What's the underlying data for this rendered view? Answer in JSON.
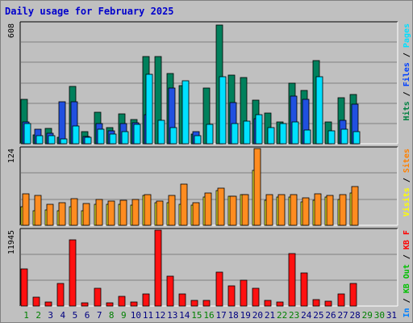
{
  "chart_data": {
    "type": "bar",
    "title": "Daily usage for February 2025",
    "categories": [
      "1",
      "2",
      "3",
      "4",
      "5",
      "6",
      "7",
      "8",
      "9",
      "10",
      "11",
      "12",
      "13",
      "14",
      "15",
      "16",
      "17",
      "18",
      "19",
      "20",
      "21",
      "22",
      "23",
      "24",
      "25",
      "26",
      "27",
      "28",
      "29",
      "30",
      "31"
    ],
    "weekend_days": [
      1,
      2,
      8,
      9,
      15,
      16,
      22,
      23,
      29,
      30
    ],
    "panels": [
      {
        "id": "top",
        "max_label": "608",
        "ylim": [
          0,
          608
        ],
        "legend": [
          {
            "label": "Hits",
            "color": "#008040"
          },
          {
            "sep": " / "
          },
          {
            "label": "Files",
            "color": "#0040ff"
          },
          {
            "sep": " / "
          },
          {
            "label": "Pages",
            "color": "#00e0ff"
          }
        ],
        "series": [
          {
            "name": "Hits",
            "color": "#00805c",
            "values": [
              225,
              45,
              78,
              33,
              288,
              62,
              160,
              80,
              150,
              122,
              440,
              440,
              355,
              292,
              50,
              280,
              600,
              345,
              335,
              220,
              155,
              110,
              308,
              270,
              420,
              112,
              232,
              250,
              null,
              null,
              null
            ]
          },
          {
            "name": "Files",
            "color": "#2050e0",
            "values": [
              112,
              72,
              55,
              212,
              212,
              38,
              100,
              65,
              102,
              105,
              145,
              0,
              280,
              0,
              62,
              0,
              0,
              210,
              0,
              125,
              0,
              0,
              240,
              225,
              0,
              0,
              120,
              198,
              null,
              null,
              null
            ]
          },
          {
            "name": "Pages",
            "color": "#00e0ff",
            "values": [
              100,
              42,
              40,
              25,
              90,
              32,
              75,
              50,
              62,
              97,
              350,
              118,
              80,
              320,
              42,
              97,
              340,
              100,
              115,
              148,
              82,
              100,
              110,
              70,
              338,
              65,
              72,
              60,
              null,
              null,
              null
            ]
          }
        ]
      },
      {
        "id": "middle",
        "max_label": "124",
        "ylim": [
          0,
          124
        ],
        "legend": [
          {
            "label": "Visits",
            "color": "#ffff00"
          },
          {
            "sep": " / "
          },
          {
            "label": "Sites",
            "color": "#ff8000"
          }
        ],
        "series": [
          {
            "name": "Visits",
            "color": "#ffff30",
            "values": [
              30,
              24,
              25,
              24,
              30,
              24,
              34,
              34,
              34,
              33,
              48,
              36,
              37,
              34,
              33,
              46,
              56,
              47,
              50,
              89,
              40,
              46,
              46,
              38,
              40,
              46,
              42,
              52,
              null,
              null,
              null
            ]
          },
          {
            "name": "Sites",
            "color": "#ff8c20",
            "values": [
              51,
              48,
              34,
              36,
              43,
              35,
              42,
              39,
              41,
              42,
              50,
              39,
              48,
              66,
              37,
              52,
              60,
              47,
              49,
              124,
              49,
              49,
              50,
              45,
              51,
              48,
              50,
              63,
              null,
              null,
              null
            ]
          }
        ]
      },
      {
        "id": "bottom",
        "max_label": "11945",
        "ylim": [
          0,
          11945
        ],
        "legend": [
          {
            "label": "KB In",
            "color": "#0080ff"
          },
          {
            "sep": " / "
          },
          {
            "label": "KB Out",
            "color": "#00c000"
          },
          {
            "sep": " / "
          },
          {
            "label": "KB F",
            "color": "#ff0000"
          }
        ],
        "series": [
          {
            "name": "KB F",
            "color": "#ff1010",
            "values": [
              5860,
              1370,
              670,
              3510,
              10440,
              450,
              2770,
              520,
              1520,
              610,
              1870,
              11945,
              4640,
              1870,
              940,
              930,
              5400,
              3190,
              4070,
              2770,
              890,
              650,
              8250,
              5260,
              1020,
              750,
              1930,
              3540,
              null,
              null,
              null
            ]
          }
        ]
      }
    ],
    "colors": {
      "background": "#c0c0c0",
      "plot_background": "#c0c0c0",
      "grid": "#808080",
      "title": "#0000cc",
      "weekday_label": "#000080",
      "weekend_label": "#008000"
    }
  }
}
